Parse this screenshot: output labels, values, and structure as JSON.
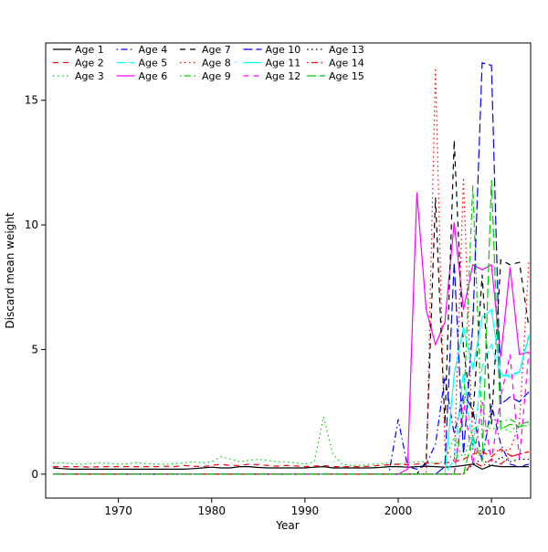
{
  "chart_data": {
    "type": "line",
    "xlabel": "Year",
    "ylabel": "Discard mean weight",
    "xlim": [
      1962.2,
      2014.2
    ],
    "ylim": [
      -0.96,
      17.3
    ],
    "x_ticks": [
      1970,
      1980,
      1990,
      2000,
      2010
    ],
    "y_ticks": [
      0,
      5,
      10,
      15
    ],
    "grid": false,
    "legend_position": "top-left",
    "legend_columns": 5,
    "frame": true,
    "x": [
      1963,
      1964,
      1965,
      1966,
      1967,
      1968,
      1969,
      1970,
      1971,
      1972,
      1973,
      1974,
      1975,
      1976,
      1977,
      1978,
      1979,
      1980,
      1981,
      1982,
      1983,
      1984,
      1985,
      1986,
      1987,
      1988,
      1989,
      1990,
      1991,
      1992,
      1993,
      1994,
      1995,
      1996,
      1997,
      1998,
      1999,
      2000,
      2001,
      2002,
      2003,
      2004,
      2005,
      2006,
      2007,
      2008,
      2009,
      2010,
      2011,
      2012,
      2013,
      2014
    ],
    "series": [
      {
        "name": "Age 1",
        "color": "#000000",
        "linetype": "solid",
        "values": [
          0.25,
          0.22,
          0.2,
          0.2,
          0.2,
          0.2,
          0.2,
          0.2,
          0.2,
          0.2,
          0.2,
          0.2,
          0.2,
          0.2,
          0.2,
          0.22,
          0.25,
          0.28,
          0.25,
          0.25,
          0.3,
          0.3,
          0.27,
          0.25,
          0.25,
          0.25,
          0.25,
          0.25,
          0.28,
          0.3,
          0.25,
          0.25,
          0.25,
          0.25,
          0.25,
          0.27,
          0.3,
          0.3,
          0.28,
          0.3,
          0.32,
          0.3,
          0.28,
          0.3,
          0.35,
          0.4,
          0.2,
          0.35,
          0.3,
          0.3,
          0.3,
          0.3
        ]
      },
      {
        "name": "Age 2",
        "color": "#FF0000",
        "linetype": "dashed",
        "values": [
          0.3,
          0.3,
          0.3,
          0.3,
          0.28,
          0.3,
          0.3,
          0.3,
          0.3,
          0.3,
          0.3,
          0.3,
          0.32,
          0.3,
          0.35,
          0.32,
          0.3,
          0.35,
          0.4,
          0.35,
          0.35,
          0.4,
          0.38,
          0.35,
          0.32,
          0.35,
          0.33,
          0.3,
          0.32,
          0.35,
          0.3,
          0.3,
          0.3,
          0.3,
          0.32,
          0.35,
          0.38,
          0.4,
          0.38,
          0.4,
          0.45,
          0.42,
          0.45,
          0.5,
          0.6,
          0.8,
          0.9,
          0.7,
          1.0,
          0.75,
          0.8,
          0.9
        ]
      },
      {
        "name": "Age 3",
        "color": "#00CD00",
        "linetype": "dotted",
        "values": [
          0.45,
          0.45,
          0.42,
          0.4,
          0.42,
          0.45,
          0.43,
          0.4,
          0.42,
          0.45,
          0.42,
          0.4,
          0.4,
          0.42,
          0.45,
          0.5,
          0.45,
          0.5,
          0.7,
          0.6,
          0.5,
          0.55,
          0.6,
          0.55,
          0.5,
          0.5,
          0.45,
          0.4,
          0.5,
          2.3,
          0.8,
          0.4,
          0.35,
          0.35,
          0.4,
          0.4,
          0.45,
          0.4,
          0.45,
          0.5,
          0.5,
          0.45,
          0.5,
          1.5,
          0.6,
          1.8,
          2.0,
          1.8,
          1.9,
          1.7,
          2.0,
          1.9
        ]
      },
      {
        "name": "Age 4",
        "color": "#0000FF",
        "linetype": "dotdash",
        "values": [
          0,
          0,
          0,
          0,
          0,
          0,
          0,
          0,
          0,
          0,
          0,
          0,
          0,
          0,
          0,
          0,
          0,
          0,
          0,
          0,
          0,
          0,
          0,
          0,
          0,
          0,
          0,
          0,
          0,
          0,
          0,
          0,
          0,
          0,
          0,
          0,
          0,
          2.2,
          0.3,
          0.2,
          0.4,
          1.2,
          3.9,
          1.6,
          3.2,
          2.6,
          0.5,
          2.8,
          1.2,
          0.4,
          0.3,
          0.4
        ]
      },
      {
        "name": "Age 5",
        "color": "#00FFFF",
        "linetype": "longdash",
        "values": [
          0,
          0,
          0,
          0,
          0,
          0,
          0,
          0,
          0,
          0,
          0,
          0,
          0,
          0,
          0,
          0,
          0,
          0,
          0,
          0,
          0,
          0,
          0,
          0,
          0,
          0,
          0,
          0,
          0,
          0,
          0,
          0,
          0,
          0,
          0,
          0,
          0,
          0,
          0,
          0,
          0,
          0,
          0,
          0.6,
          4.1,
          1.0,
          4.3,
          5.2,
          3.9,
          4.0,
          4.1,
          5.6
        ]
      },
      {
        "name": "Age 6",
        "color": "#FF00FF",
        "linetype": "solid",
        "values": [
          0,
          0,
          0,
          0,
          0,
          0,
          0,
          0,
          0,
          0,
          0,
          0,
          0,
          0,
          0,
          0,
          0,
          0,
          0,
          0,
          0,
          0,
          0,
          0,
          0,
          0,
          0,
          0,
          0,
          0,
          0,
          0,
          0,
          0,
          0,
          0,
          0,
          0,
          0.2,
          11.3,
          6.6,
          5.2,
          6.1,
          10.1,
          6.6,
          8.4,
          8.2,
          8.4,
          4.7,
          8.3,
          4.8,
          4.9
        ]
      },
      {
        "name": "Age 7",
        "color": "#000000",
        "linetype": "dashed",
        "values": [
          0,
          0,
          0,
          0,
          0,
          0,
          0,
          0,
          0,
          0,
          0,
          0,
          0,
          0,
          0,
          0,
          0,
          0,
          0,
          0,
          0,
          0,
          0,
          0,
          0,
          0,
          0,
          0,
          0,
          0,
          0,
          0,
          0,
          0,
          0,
          0,
          0,
          0,
          0,
          0,
          0.5,
          11.1,
          2.0,
          13.4,
          5.0,
          2.2,
          8.0,
          2.0,
          8.6,
          8.4,
          8.5,
          5.9
        ]
      },
      {
        "name": "Age 8",
        "color": "#FF0000",
        "linetype": "dotted",
        "values": [
          0,
          0,
          0,
          0,
          0,
          0,
          0,
          0,
          0,
          0,
          0,
          0,
          0,
          0,
          0,
          0,
          0,
          0,
          0,
          0,
          0,
          0,
          0,
          0,
          0,
          0,
          0,
          0,
          0,
          0,
          0,
          0,
          0,
          0,
          0,
          0,
          0,
          0,
          0,
          0,
          0,
          16.3,
          1.0,
          0.5,
          11.9,
          1.0,
          0.8,
          1.0,
          0.9,
          1.0,
          2.0,
          8.5
        ]
      },
      {
        "name": "Age 9",
        "color": "#00CD00",
        "linetype": "dotdash",
        "values": [
          0,
          0,
          0,
          0,
          0,
          0,
          0,
          0,
          0,
          0,
          0,
          0,
          0,
          0,
          0,
          0,
          0,
          0,
          0,
          0,
          0,
          0,
          0,
          0,
          0,
          0,
          0,
          0,
          0,
          0,
          0,
          0,
          0,
          0,
          0,
          0,
          0,
          0,
          0,
          0,
          0,
          0,
          0,
          0,
          2.5,
          11.6,
          1.5,
          2.2,
          2.1,
          2.2,
          2.0,
          2.1
        ]
      },
      {
        "name": "Age 10",
        "color": "#0000FF",
        "linetype": "longdash",
        "values": [
          0,
          0,
          0,
          0,
          0,
          0,
          0,
          0,
          0,
          0,
          0,
          0,
          0,
          0,
          0,
          0,
          0,
          0,
          0,
          0,
          0,
          0,
          0,
          0,
          0,
          0,
          0,
          0,
          0,
          0,
          0,
          0,
          0,
          0,
          0,
          0,
          0,
          0,
          0,
          0,
          0,
          0,
          0.3,
          8.5,
          0.8,
          6.0,
          16.5,
          16.4,
          2.8,
          3.1,
          2.9,
          3.3
        ]
      },
      {
        "name": "Age 11",
        "color": "#00FFFF",
        "linetype": "solid",
        "values": [
          0,
          0,
          0,
          0,
          0,
          0,
          0,
          0,
          0,
          0,
          0,
          0,
          0,
          0,
          0,
          0,
          0,
          0,
          0,
          0,
          0,
          0,
          0,
          0,
          0,
          0,
          0,
          0,
          0,
          0,
          0,
          0,
          0,
          0,
          0,
          0,
          0,
          0,
          0,
          0,
          0,
          0,
          0,
          4.0,
          5.9,
          4.2,
          6.3,
          6.6,
          4.0,
          3.9,
          4.1,
          5.5
        ]
      },
      {
        "name": "Age 12",
        "color": "#FF00FF",
        "linetype": "dashed",
        "values": [
          0,
          0,
          0,
          0,
          0,
          0,
          0,
          0,
          0,
          0,
          0,
          0,
          0,
          0,
          0,
          0,
          0,
          0,
          0,
          0,
          0,
          0,
          0,
          0,
          0,
          0,
          0,
          0,
          0,
          0,
          0,
          0,
          0,
          0,
          0,
          0,
          0,
          0,
          0,
          0,
          0,
          0,
          0,
          0,
          3.0,
          0.4,
          2.9,
          0.5,
          3.1,
          4.8,
          0.6,
          4.9
        ]
      },
      {
        "name": "Age 13",
        "color": "#000000",
        "linetype": "dotted",
        "values": [
          0,
          0,
          0,
          0,
          0,
          0,
          0,
          0,
          0,
          0,
          0,
          0,
          0,
          0,
          0,
          0,
          0,
          0,
          0,
          0,
          0,
          0,
          0,
          0,
          0,
          0,
          0,
          0,
          0,
          0,
          0,
          0,
          0,
          0,
          0,
          0,
          0,
          0,
          0,
          0,
          0,
          0,
          0,
          0,
          0,
          0.4,
          0.6,
          0.3,
          0.7,
          0.5,
          0.6,
          0.6
        ]
      },
      {
        "name": "Age 14",
        "color": "#FF0000",
        "linetype": "dotdash",
        "values": [
          0,
          0,
          0,
          0,
          0,
          0,
          0,
          0,
          0,
          0,
          0,
          0,
          0,
          0,
          0,
          0,
          0,
          0,
          0,
          0,
          0,
          0,
          0,
          0,
          0,
          0,
          0,
          0,
          0,
          0,
          0,
          0,
          0,
          0,
          0,
          0,
          0,
          0,
          0,
          0,
          0,
          0,
          0,
          0,
          0,
          0.5,
          0.3,
          0.6,
          0.4,
          0.7,
          0.8,
          0.9
        ]
      },
      {
        "name": "Age 15",
        "color": "#00CD00",
        "linetype": "longdash",
        "values": [
          0,
          0,
          0,
          0,
          0,
          0,
          0,
          0,
          0,
          0,
          0,
          0,
          0,
          0,
          0,
          0,
          0,
          0,
          0,
          0,
          0,
          0,
          0,
          0,
          0,
          0,
          0,
          0,
          0,
          0,
          0,
          0,
          0,
          0,
          0,
          0,
          0,
          0,
          0,
          0,
          0,
          0,
          0,
          0,
          0,
          1.5,
          0.5,
          11.8,
          1.8,
          2.0,
          1.9,
          2.0
        ]
      }
    ]
  }
}
